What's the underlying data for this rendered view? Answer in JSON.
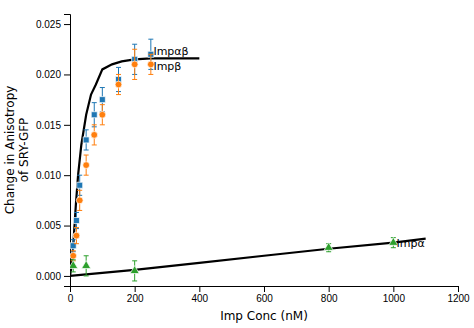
{
  "chart_data": {
    "type": "scatter",
    "xlabel": "Imp Conc (nM)",
    "ylabel": "Change in Anisotropy\nof SRY-GFP",
    "xlim": [
      0,
      1200
    ],
    "ylim": [
      -0.001,
      0.026
    ],
    "xticks": [
      0,
      200,
      400,
      600,
      800,
      1000,
      1200
    ],
    "yticks": [
      {
        "value": 0.0,
        "label": "0.000"
      },
      0.005,
      {
        "value": 0.01,
        "label": "0.010"
      },
      0.015,
      {
        "value": 0.02,
        "label": "0.020"
      },
      0.025
    ],
    "grid": false,
    "series": [
      {
        "type": "line",
        "color": "#000000",
        "x": [
          0,
          5,
          8,
          12,
          18,
          25,
          35,
          50,
          65,
          80,
          100,
          130,
          160,
          200,
          250,
          300,
          400
        ],
        "values": [
          0,
          0.001,
          0.002,
          0.004,
          0.007,
          0.01,
          0.013,
          0.016,
          0.018,
          0.019,
          0.0205,
          0.021,
          0.0213,
          0.0215,
          0.0216,
          0.0216,
          0.0216
        ]
      },
      {
        "type": "line",
        "color": "#000000",
        "x": [
          0,
          100,
          200,
          400,
          600,
          800,
          1000,
          1100
        ],
        "values": [
          0.0,
          0.0003,
          0.0006,
          0.0013,
          0.002,
          0.0027,
          0.0033,
          0.0037
        ]
      },
      {
        "type": "scatter",
        "marker": "square",
        "x": [
          10,
          20,
          30,
          50,
          75,
          100,
          150,
          200,
          250
        ],
        "values": [
          0.003,
          0.0055,
          0.009,
          0.0135,
          0.016,
          0.0175,
          0.0195,
          0.0215,
          0.022
        ],
        "errors": [
          0.0006,
          0.0008,
          0.001,
          0.001,
          0.0012,
          0.0012,
          0.0012,
          0.0015,
          0.0015
        ]
      },
      {
        "type": "scatter",
        "marker": "circle",
        "x": [
          10,
          20,
          30,
          50,
          75,
          100,
          150,
          200,
          250
        ],
        "values": [
          0.002,
          0.004,
          0.0075,
          0.011,
          0.014,
          0.016,
          0.019,
          0.021,
          0.021
        ],
        "errors": [
          0.0005,
          0.0008,
          0.001,
          0.001,
          0.001,
          0.001,
          0.001,
          0.0015,
          0.001
        ]
      },
      {
        "type": "scatter",
        "marker": "triangle",
        "x": [
          10,
          50,
          200,
          800,
          1000
        ],
        "values": [
          0.001,
          0.001,
          0.0005,
          0.0028,
          0.0033
        ],
        "errors": [
          0.0006,
          0.001,
          0.001,
          0.0004,
          0.0005
        ]
      }
    ],
    "annotations": [
      {
        "text": "Impαβ",
        "x": 258,
        "y": 0.0223
      },
      {
        "text": "Impβ",
        "x": 258,
        "y": 0.0208
      },
      {
        "text": "Impα",
        "x": 1010,
        "y": 0.0033
      }
    ]
  }
}
